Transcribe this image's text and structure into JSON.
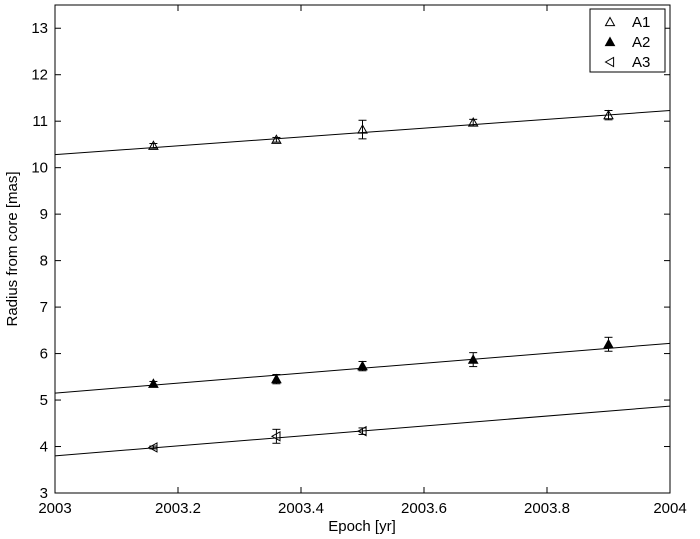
{
  "chart_data": {
    "type": "scatter",
    "title": "",
    "xlabel": "Epoch [yr]",
    "ylabel": "Radius from core [mas]",
    "xlim": [
      2003,
      2004
    ],
    "ylim": [
      3,
      13.5
    ],
    "x_ticks": [
      2003,
      2003.2,
      2003.4,
      2003.6,
      2003.8,
      2004
    ],
    "x_tick_labels": [
      "2003",
      "2003.2",
      "2003.4",
      "2003.6",
      "2003.8",
      "2004"
    ],
    "y_ticks": [
      3,
      4,
      5,
      6,
      7,
      8,
      9,
      10,
      11,
      12,
      13
    ],
    "y_tick_labels": [
      "3",
      "4",
      "5",
      "6",
      "7",
      "8",
      "9",
      "10",
      "11",
      "12",
      "13"
    ],
    "grid": false,
    "legend_position": "top-right",
    "series": [
      {
        "name": "A1",
        "marker": "triangle-up-open",
        "points": [
          {
            "x": 2003.16,
            "y": 10.47,
            "err": 0.05
          },
          {
            "x": 2003.36,
            "y": 10.6,
            "err": 0.05
          },
          {
            "x": 2003.5,
            "y": 10.82,
            "err": 0.2
          },
          {
            "x": 2003.68,
            "y": 10.97,
            "err": 0.07
          },
          {
            "x": 2003.9,
            "y": 11.13,
            "err": 0.1
          }
        ],
        "fit": {
          "x": [
            2003,
            2004
          ],
          "y": [
            10.28,
            11.23
          ]
        }
      },
      {
        "name": "A2",
        "marker": "triangle-up-filled",
        "points": [
          {
            "x": 2003.16,
            "y": 5.35,
            "err": 0.05
          },
          {
            "x": 2003.36,
            "y": 5.45,
            "err": 0.1
          },
          {
            "x": 2003.5,
            "y": 5.73,
            "err": 0.1
          },
          {
            "x": 2003.68,
            "y": 5.87,
            "err": 0.15
          },
          {
            "x": 2003.9,
            "y": 6.2,
            "err": 0.15
          }
        ],
        "fit": {
          "x": [
            2003,
            2004
          ],
          "y": [
            5.15,
            6.22
          ]
        }
      },
      {
        "name": "A3",
        "marker": "triangle-left-open",
        "points": [
          {
            "x": 2003.16,
            "y": 3.98,
            "err": 0.03
          },
          {
            "x": 2003.36,
            "y": 4.22,
            "err": 0.15
          },
          {
            "x": 2003.5,
            "y": 4.33,
            "err": 0.07
          }
        ],
        "fit": {
          "x": [
            2003,
            2004
          ],
          "y": [
            3.8,
            4.87
          ]
        }
      }
    ]
  }
}
